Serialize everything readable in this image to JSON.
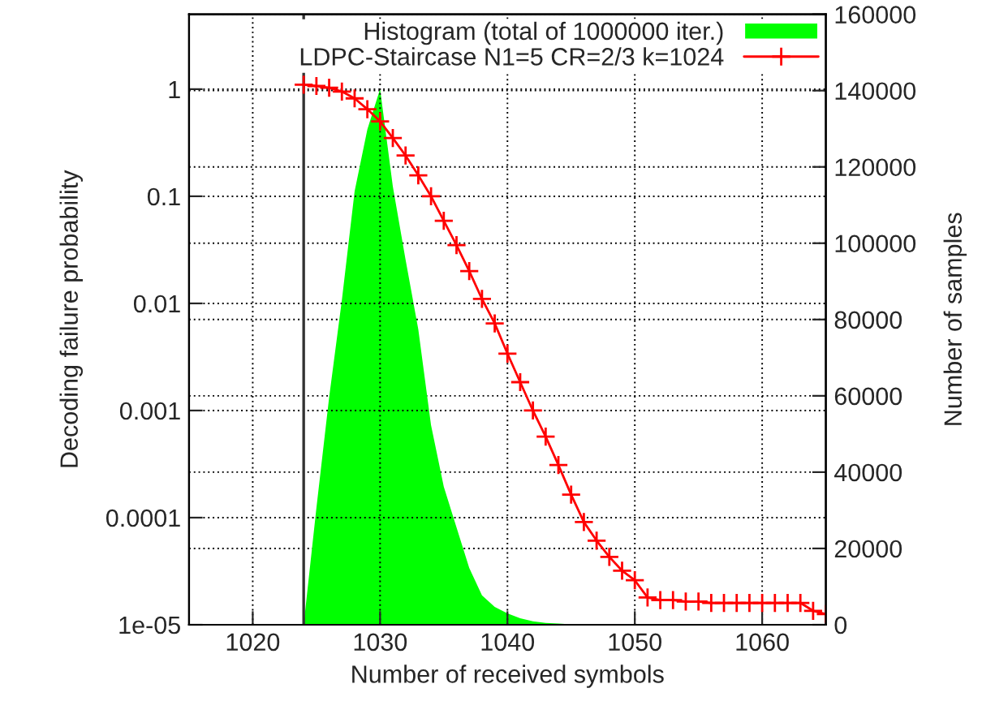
{
  "chart_data": {
    "type": "line",
    "xlabel": "Number of received symbols",
    "ylabel": "Decoding failure probability",
    "y2label": "Number of samples",
    "series": [
      {
        "name": "Histogram (total of 1000000 iter.)",
        "type": "area",
        "axis": "y2",
        "color": "#00ff00",
        "x": [
          1024,
          1025,
          1026,
          1027,
          1028,
          1029,
          1030,
          1031,
          1032,
          1033,
          1034,
          1035,
          1036,
          1037,
          1038,
          1039,
          1040,
          1041,
          1042,
          1043,
          1044,
          1045,
          1046
        ],
        "values": [
          0,
          30600,
          59600,
          85100,
          113600,
          129800,
          140400,
          114900,
          95700,
          77400,
          52300,
          36200,
          25500,
          14900,
          7700,
          4700,
          3000,
          1700,
          900,
          500,
          300,
          100,
          0
        ]
      },
      {
        "name": "LDPC-Staircase N1=5 CR=2/3 k=1024",
        "color": "#ff0000",
        "marker": "cross",
        "line_style": "solid",
        "x": [
          1024,
          1025,
          1026,
          1027,
          1028,
          1029,
          1030,
          1031,
          1032,
          1033,
          1034,
          1035,
          1036,
          1037,
          1038,
          1039,
          1040,
          1041,
          1042,
          1043,
          1044,
          1045,
          1046,
          1047,
          1048,
          1049,
          1050,
          1051,
          1052,
          1053,
          1054,
          1055,
          1056,
          1057,
          1058,
          1059,
          1060,
          1061,
          1062,
          1063,
          1064,
          1065
        ],
        "values": [
          1.1,
          1.07,
          1.03,
          0.95,
          0.82,
          0.65,
          0.5,
          0.35,
          0.24,
          0.157,
          0.1,
          0.059,
          0.035,
          0.02,
          0.011,
          0.0065,
          0.0034,
          0.00184,
          0.001,
          0.00057,
          0.00031,
          0.000164,
          9.1e-05,
          6.1e-05,
          4.3e-05,
          3.2e-05,
          2.6e-05,
          1.8e-05,
          1.7e-05,
          1.7e-05,
          1.65e-05,
          1.65e-05,
          1.6e-05,
          1.6e-05,
          1.6e-05,
          1.6e-05,
          1.6e-05,
          1.6e-05,
          1.6e-05,
          1.6e-05,
          1.35e-05,
          1.26e-05
        ]
      }
    ],
    "xlim": [
      1015,
      1065
    ],
    "xticks": [
      1020,
      1030,
      1040,
      1050,
      1060
    ],
    "log": "y",
    "ylim": [
      1e-05,
      5
    ],
    "yticks": [
      1e-05,
      0.0001,
      0.001,
      0.01,
      0.1,
      1
    ],
    "y2lim": [
      0,
      160000
    ],
    "y2ticks": [
      0,
      20000,
      40000,
      60000,
      80000,
      100000,
      120000,
      140000,
      160000
    ],
    "ref_lines": [
      {
        "axis": "x",
        "value": 1024,
        "color": "#333333"
      }
    ],
    "grid": true,
    "legend": "top right"
  }
}
